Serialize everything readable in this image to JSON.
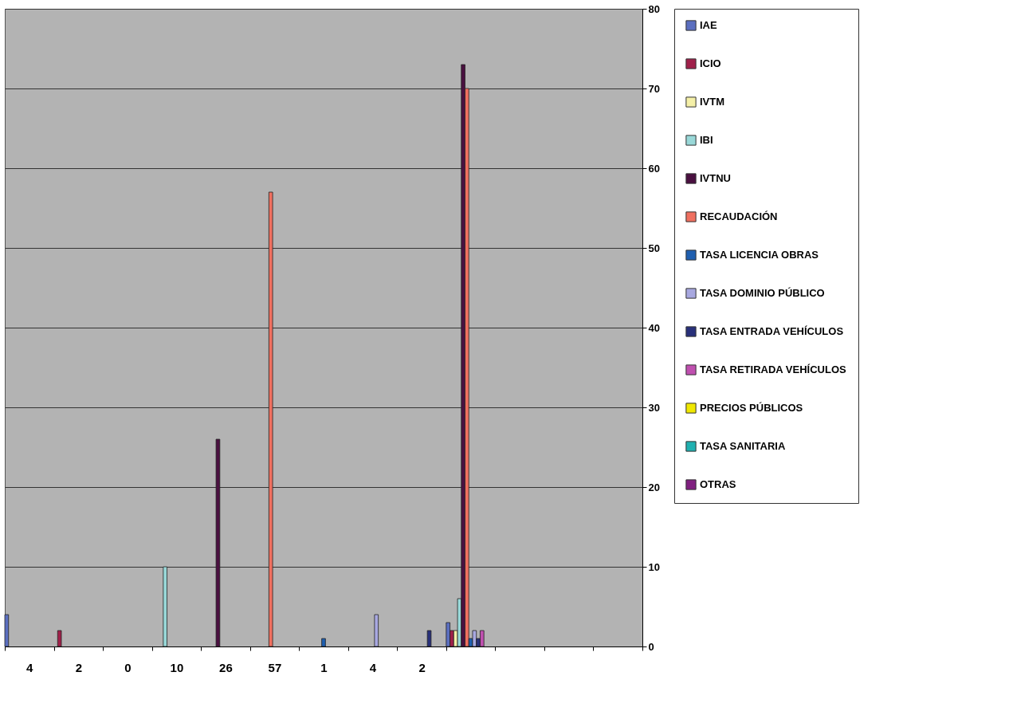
{
  "chart_data": {
    "type": "bar",
    "categories": [
      "4",
      "2",
      "0",
      "10",
      "26",
      "57",
      "1",
      "4",
      "2",
      null,
      null,
      null,
      null
    ],
    "series": [
      {
        "name": "IAE",
        "color": "#5b6fc0",
        "values": [
          4,
          null,
          null,
          null,
          null,
          null,
          null,
          null,
          null,
          3,
          null,
          null,
          null
        ]
      },
      {
        "name": "ICIO",
        "color": "#a0204a",
        "values": [
          null,
          2,
          null,
          null,
          null,
          null,
          null,
          null,
          null,
          2,
          null,
          null,
          null
        ]
      },
      {
        "name": "IVTM",
        "color": "#f5f0a8",
        "values": [
          null,
          null,
          0,
          null,
          null,
          null,
          null,
          null,
          null,
          2,
          null,
          null,
          null
        ]
      },
      {
        "name": "IBI",
        "color": "#99d8d8",
        "values": [
          null,
          null,
          null,
          10,
          null,
          null,
          null,
          null,
          null,
          6,
          null,
          null,
          null
        ]
      },
      {
        "name": "IVTNU",
        "color": "#4a1040",
        "values": [
          null,
          null,
          null,
          null,
          26,
          null,
          null,
          null,
          null,
          73,
          null,
          null,
          null
        ]
      },
      {
        "name": "RECAUDACIÓN",
        "color": "#f07060",
        "values": [
          null,
          null,
          null,
          null,
          null,
          57,
          null,
          null,
          null,
          70,
          null,
          null,
          null
        ]
      },
      {
        "name": "TASA LICENCIA OBRAS",
        "color": "#1f5fb0",
        "values": [
          null,
          null,
          null,
          null,
          null,
          null,
          1,
          null,
          null,
          1,
          null,
          null,
          null
        ]
      },
      {
        "name": "TASA DOMINIO PÚBLICO",
        "color": "#a8a8e0",
        "values": [
          null,
          null,
          null,
          null,
          null,
          null,
          null,
          4,
          null,
          2,
          null,
          null,
          null
        ]
      },
      {
        "name": "TASA ENTRADA VEHÍCULOS",
        "color": "#28307a",
        "values": [
          null,
          null,
          null,
          null,
          null,
          null,
          null,
          null,
          2,
          1,
          null,
          null,
          null
        ]
      },
      {
        "name": "TASA RETIRADA VEHÍCULOS",
        "color": "#c050b0",
        "values": [
          null,
          null,
          null,
          null,
          null,
          null,
          null,
          null,
          null,
          2,
          null,
          null,
          null
        ]
      },
      {
        "name": "PRECIOS PÚBLICOS",
        "color": "#f0e800",
        "values": [
          null,
          null,
          null,
          null,
          null,
          null,
          null,
          null,
          null,
          null,
          null,
          null,
          null
        ]
      },
      {
        "name": "TASA SANITARIA",
        "color": "#20b0b0",
        "values": [
          null,
          null,
          null,
          null,
          null,
          null,
          null,
          null,
          null,
          null,
          null,
          null,
          null
        ]
      },
      {
        "name": "OTRAS",
        "color": "#802080",
        "values": [
          null,
          null,
          null,
          null,
          null,
          null,
          null,
          null,
          null,
          null,
          null,
          null,
          null
        ]
      }
    ],
    "ylim": [
      0,
      80
    ],
    "yticks": [
      0,
      10,
      20,
      30,
      40,
      50,
      60,
      70,
      80
    ],
    "grid": "y",
    "legend": "right"
  }
}
